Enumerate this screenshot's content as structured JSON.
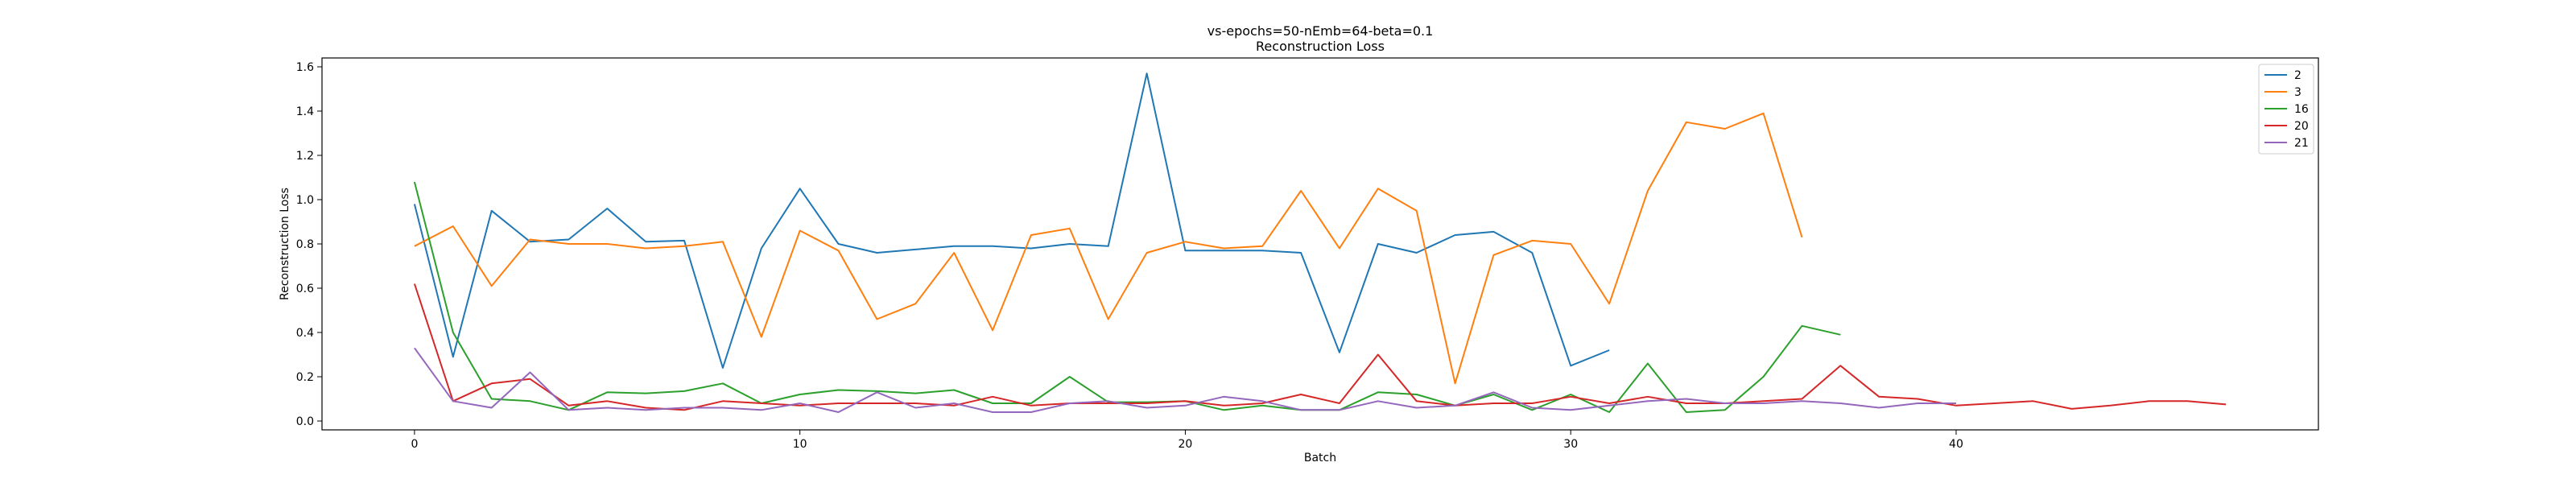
{
  "chart_data": {
    "type": "line",
    "title": "vs-epochs=50-nEmb=64-beta=0.1",
    "subtitle": "Reconstruction Loss",
    "xlabel": "Batch",
    "ylabel": "Reconstruction Loss",
    "xlim": [
      -2.4,
      49.4
    ],
    "ylim": [
      -0.04,
      1.64
    ],
    "xticks": [
      0,
      10,
      20,
      30,
      40
    ],
    "yticks": [
      0.0,
      0.2,
      0.4,
      0.6,
      0.8,
      1.0,
      1.2,
      1.4,
      1.6
    ],
    "grid": false,
    "legend_position": "top-right",
    "series": [
      {
        "name": "2",
        "color": "#1f77b4",
        "values": [
          0.98,
          0.29,
          0.95,
          0.81,
          0.82,
          0.96,
          0.81,
          0.815,
          0.24,
          0.78,
          1.05,
          0.8,
          0.76,
          0.775,
          0.79,
          0.79,
          0.78,
          0.8,
          0.79,
          1.57,
          0.77,
          0.77,
          0.77,
          0.76,
          0.31,
          0.8,
          0.76,
          0.84,
          0.855,
          0.76,
          0.25,
          0.32
        ]
      },
      {
        "name": "3",
        "color": "#ff7f0e",
        "values": [
          0.79,
          0.88,
          0.61,
          0.82,
          0.8,
          0.8,
          0.78,
          0.79,
          0.81,
          0.38,
          0.86,
          0.77,
          0.46,
          0.53,
          0.76,
          0.41,
          0.84,
          0.87,
          0.46,
          0.76,
          0.81,
          0.78,
          0.79,
          1.04,
          0.78,
          1.05,
          0.95,
          0.17,
          0.75,
          0.815,
          0.8,
          0.53,
          1.04,
          1.35,
          1.32,
          1.39,
          0.83
        ]
      },
      {
        "name": "16",
        "color": "#2ca02c",
        "values": [
          1.08,
          0.4,
          0.1,
          0.09,
          0.05,
          0.13,
          0.125,
          0.135,
          0.17,
          0.08,
          0.12,
          0.14,
          0.135,
          0.125,
          0.14,
          0.08,
          0.08,
          0.2,
          0.085,
          0.085,
          0.09,
          0.05,
          0.07,
          0.05,
          0.05,
          0.13,
          0.12,
          0.07,
          0.12,
          0.05,
          0.12,
          0.04,
          0.26,
          0.04,
          0.05,
          0.2,
          0.43,
          0.39
        ]
      },
      {
        "name": "20",
        "color": "#d62728",
        "values": [
          0.62,
          0.09,
          0.17,
          0.19,
          0.07,
          0.09,
          0.06,
          0.05,
          0.09,
          0.08,
          0.07,
          0.08,
          0.08,
          0.08,
          0.07,
          0.11,
          0.07,
          0.08,
          0.08,
          0.08,
          0.09,
          0.07,
          0.08,
          0.12,
          0.08,
          0.3,
          0.09,
          0.07,
          0.08,
          0.08,
          0.11,
          0.08,
          0.11,
          0.08,
          0.08,
          0.09,
          0.1,
          0.25,
          0.11,
          0.1,
          0.07,
          0.08,
          0.09,
          0.055,
          0.07,
          0.09,
          0.09,
          0.075
        ]
      },
      {
        "name": "21",
        "color": "#9467bd",
        "values": [
          0.33,
          0.09,
          0.06,
          0.22,
          0.05,
          0.06,
          0.05,
          0.06,
          0.06,
          0.05,
          0.08,
          0.04,
          0.13,
          0.06,
          0.08,
          0.04,
          0.04,
          0.08,
          0.09,
          0.06,
          0.07,
          0.11,
          0.09,
          0.05,
          0.05,
          0.09,
          0.06,
          0.07,
          0.13,
          0.06,
          0.05,
          0.07,
          0.09,
          0.1,
          0.08,
          0.08,
          0.09,
          0.08,
          0.06,
          0.08,
          0.08
        ]
      }
    ]
  }
}
